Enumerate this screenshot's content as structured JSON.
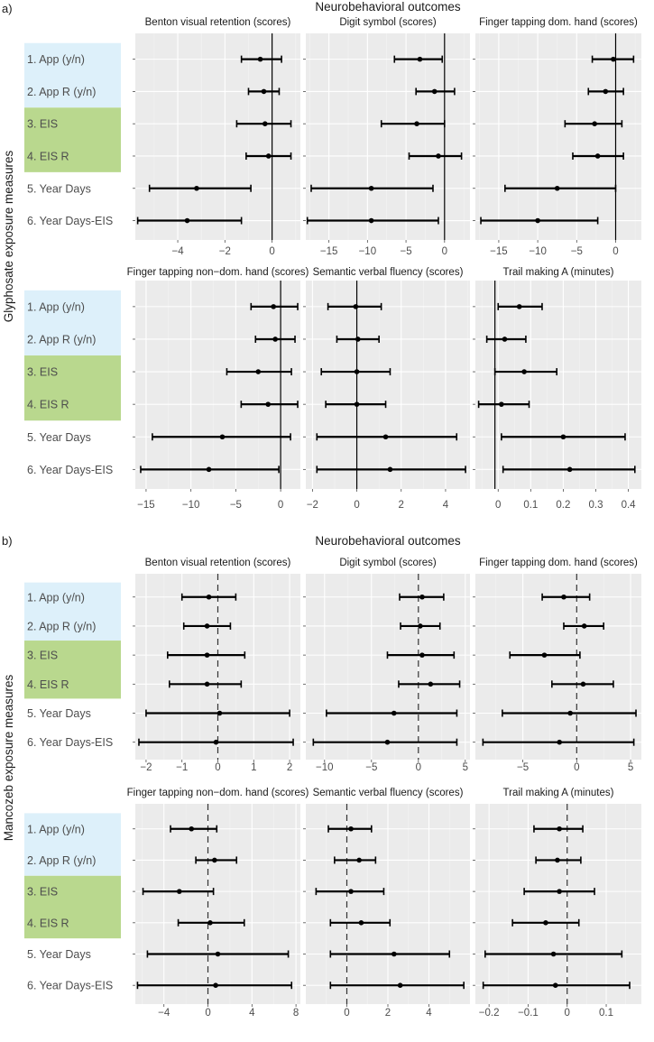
{
  "palette": {
    "panel_bg": "#ebebeb",
    "grid_major": "#ffffff",
    "grid_minor": "#f4f4f4",
    "ci_line": "#000000",
    "ref_line": "#000000",
    "ref_line_b": "#333333",
    "band_blue": "#ddf0fa",
    "band_green": "#b9d88e",
    "axis_text": "#4d4d4d",
    "title_text": "#1a1a1a"
  },
  "figures": [
    {
      "key": "a",
      "letter": "a)",
      "outcome_title": "Neurobehavioral outcomes",
      "exposure_title": "Glyphosate exposure measures",
      "row_labels": [
        "1. App (y/n)",
        "2. App R (y/n)",
        "3. EIS",
        "4. EIS R",
        "5. Year Days",
        "6. Year Days-EIS"
      ],
      "ref_style": "solid"
    },
    {
      "key": "b",
      "letter": "b)",
      "outcome_title": "Neurobehavioral outcomes",
      "exposure_title": "Mancozeb exposure measures",
      "row_labels": [
        "1. App (y/n)",
        "2. App R (y/n)",
        "3. EIS",
        "4. EIS R",
        "5. Year Days",
        "6. Year Days-EIS"
      ],
      "ref_style": "dashed"
    }
  ],
  "chart_data": [
    {
      "type": "forest",
      "figure": "a",
      "panels": [
        {
          "title": "Benton visual retention (scores)",
          "xlim": [
            -5.8,
            1.2
          ],
          "ticks": [
            -4,
            -2,
            0
          ],
          "ref": 0,
          "estimates": [
            -0.5,
            -0.35,
            -0.3,
            -0.15,
            -3.2,
            -3.6
          ],
          "ci": [
            [
              -1.3,
              0.4
            ],
            [
              -1.0,
              0.3
            ],
            [
              -1.5,
              0.8
            ],
            [
              -1.1,
              0.8
            ],
            [
              -5.2,
              -0.9
            ],
            [
              -5.7,
              -1.3
            ]
          ]
        },
        {
          "title": "Digit symbol (scores)",
          "xlim": [
            -18,
            3.3
          ],
          "ticks": [
            -15,
            -10,
            -5,
            0
          ],
          "ref": 0,
          "estimates": [
            -3.2,
            -1.3,
            -3.6,
            -0.8,
            -9.5,
            -9.5
          ],
          "ci": [
            [
              -6.5,
              -0.3
            ],
            [
              -3.7,
              1.3
            ],
            [
              -8.2,
              0.0
            ],
            [
              -4.6,
              2.2
            ],
            [
              -17.3,
              -1.5
            ],
            [
              -17.8,
              -0.8
            ]
          ]
        },
        {
          "title": "Finger tapping dom. hand (scores)",
          "xlim": [
            -18,
            3.3
          ],
          "ticks": [
            -15,
            -10,
            -5,
            0
          ],
          "ref": 0,
          "estimates": [
            -0.3,
            -1.3,
            -2.7,
            -2.3,
            -7.5,
            -10.0
          ],
          "ci": [
            [
              -3.0,
              2.3
            ],
            [
              -3.5,
              1.0
            ],
            [
              -6.5,
              0.8
            ],
            [
              -5.5,
              1.0
            ],
            [
              -14.2,
              0.0
            ],
            [
              -17.3,
              -2.3
            ]
          ]
        },
        {
          "title": "Finger tapping non−dom. hand (scores)",
          "xlim": [
            -16.2,
            2.2
          ],
          "ticks": [
            -15,
            -10,
            -5,
            0
          ],
          "ref": 0,
          "estimates": [
            -0.8,
            -0.6,
            -2.5,
            -1.4,
            -6.5,
            -8.0
          ],
          "ci": [
            [
              -3.3,
              1.9
            ],
            [
              -2.8,
              1.6
            ],
            [
              -6.0,
              1.2
            ],
            [
              -4.4,
              1.9
            ],
            [
              -14.3,
              1.1
            ],
            [
              -15.6,
              -0.2
            ]
          ]
        },
        {
          "title": "Semantic verbal fluency (scores)",
          "xlim": [
            -2.3,
            5.1
          ],
          "ticks": [
            -2,
            0,
            2,
            4
          ],
          "ref": 0,
          "estimates": [
            -0.05,
            0.05,
            0.0,
            0.0,
            1.3,
            1.5
          ],
          "ci": [
            [
              -1.3,
              1.1
            ],
            [
              -0.9,
              1.0
            ],
            [
              -1.6,
              1.5
            ],
            [
              -1.4,
              1.3
            ],
            [
              -1.8,
              4.5
            ],
            [
              -1.8,
              4.9
            ]
          ]
        },
        {
          "title": "Trail making A (minutes)",
          "xlim": [
            -0.07,
            0.44
          ],
          "ticks": [
            0.0,
            0.1,
            0.2,
            0.3,
            0.4
          ],
          "ref": -0.01,
          "estimates": [
            0.065,
            0.02,
            0.08,
            0.01,
            0.2,
            0.22
          ],
          "ci": [
            [
              0.0,
              0.135
            ],
            [
              -0.035,
              0.085
            ],
            [
              -0.01,
              0.18
            ],
            [
              -0.06,
              0.095
            ],
            [
              0.01,
              0.39
            ],
            [
              0.015,
              0.42
            ]
          ]
        }
      ]
    },
    {
      "type": "forest",
      "figure": "b",
      "panels": [
        {
          "title": "Benton visual retention (scores)",
          "xlim": [
            -2.3,
            2.3
          ],
          "ticks": [
            -2,
            -1,
            0,
            1,
            2
          ],
          "ref": 0,
          "estimates": [
            -0.25,
            -0.3,
            -0.3,
            -0.3,
            0.05,
            -0.05
          ],
          "ci": [
            [
              -1.0,
              0.5
            ],
            [
              -0.95,
              0.35
            ],
            [
              -1.4,
              0.75
            ],
            [
              -1.35,
              0.65
            ],
            [
              -2.0,
              2.0
            ],
            [
              -2.2,
              2.1
            ]
          ]
        },
        {
          "title": "Digit symbol (scores)",
          "xlim": [
            -12,
            5.5
          ],
          "ticks": [
            -10,
            -5,
            0,
            5
          ],
          "ref": 0,
          "estimates": [
            0.4,
            0.2,
            0.4,
            1.3,
            -2.6,
            -3.3
          ],
          "ci": [
            [
              -2.0,
              2.7
            ],
            [
              -1.9,
              2.3
            ],
            [
              -3.3,
              3.8
            ],
            [
              -2.1,
              4.4
            ],
            [
              -9.8,
              4.1
            ],
            [
              -11.2,
              4.1
            ]
          ]
        },
        {
          "title": "Finger tapping dom. hand (scores)",
          "xlim": [
            -9.4,
            6.0
          ],
          "ticks": [
            -5,
            0,
            5
          ],
          "ref": 0,
          "estimates": [
            -1.2,
            0.7,
            -3.0,
            0.6,
            -0.6,
            -1.6
          ],
          "ci": [
            [
              -3.2,
              1.2
            ],
            [
              -1.2,
              2.5
            ],
            [
              -6.2,
              0.3
            ],
            [
              -2.3,
              3.4
            ],
            [
              -6.9,
              5.5
            ],
            [
              -8.7,
              5.3
            ]
          ]
        },
        {
          "title": "Finger tapping non−dom. hand (scores)",
          "xlim": [
            -6.6,
            8.4
          ],
          "ticks": [
            -4,
            0,
            4,
            8
          ],
          "ref": 0,
          "estimates": [
            -1.5,
            0.6,
            -2.6,
            0.2,
            0.9,
            0.7
          ],
          "ci": [
            [
              -3.4,
              0.8
            ],
            [
              -1.1,
              2.6
            ],
            [
              -5.9,
              0.5
            ],
            [
              -2.7,
              3.3
            ],
            [
              -5.5,
              7.3
            ],
            [
              -6.4,
              7.6
            ]
          ]
        },
        {
          "title": "Semantic verbal fluency (scores)",
          "xlim": [
            -2.0,
            6.0
          ],
          "ticks": [
            0,
            2,
            4
          ],
          "ref": 0,
          "estimates": [
            0.2,
            0.6,
            0.2,
            0.7,
            2.3,
            2.6
          ],
          "ci": [
            [
              -0.9,
              1.2
            ],
            [
              -0.6,
              1.4
            ],
            [
              -1.5,
              1.8
            ],
            [
              -0.8,
              2.1
            ],
            [
              -0.8,
              5.0
            ],
            [
              -0.8,
              5.7
            ]
          ]
        },
        {
          "title": "Trail making A (minutes)",
          "xlim": [
            -0.235,
            0.19
          ],
          "ticks": [
            -0.2,
            -0.1,
            0.0,
            0.1
          ],
          "ref": 0,
          "estimates": [
            -0.02,
            -0.025,
            -0.02,
            -0.055,
            -0.035,
            -0.03
          ],
          "ci": [
            [
              -0.085,
              0.04
            ],
            [
              -0.08,
              0.035
            ],
            [
              -0.11,
              0.07
            ],
            [
              -0.14,
              0.03
            ],
            [
              -0.21,
              0.14
            ],
            [
              -0.215,
              0.16
            ]
          ]
        }
      ]
    }
  ]
}
